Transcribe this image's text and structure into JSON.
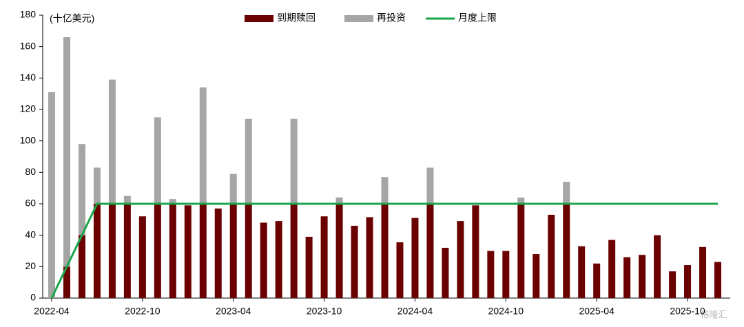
{
  "chart_data": {
    "type": "bar",
    "stacked": true,
    "y_label": "(十亿美元)",
    "watermark": "格隆汇",
    "categories": [
      "2022-04",
      null,
      null,
      null,
      null,
      null,
      "2022-10",
      null,
      null,
      null,
      null,
      null,
      "2023-04",
      null,
      null,
      null,
      null,
      null,
      "2023-10",
      null,
      null,
      null,
      null,
      null,
      "2024-04",
      null,
      null,
      null,
      null,
      null,
      "2024-10",
      null,
      null,
      null,
      null,
      null,
      "2025-04",
      null,
      null,
      null,
      null,
      null,
      "2025-10",
      null,
      null
    ],
    "series": [
      {
        "name": "到期赎回",
        "type": "bar",
        "color": "#6b0000",
        "values": [
          0,
          20,
          40,
          60,
          60,
          60,
          52,
          60,
          60,
          59,
          60,
          57,
          60,
          60,
          48,
          49,
          60,
          39,
          52,
          60,
          46,
          51.5,
          60,
          35.5,
          51,
          60,
          32,
          49,
          59,
          30,
          30,
          60,
          28,
          53,
          60,
          33,
          22,
          37,
          26,
          27.5,
          40,
          17,
          21,
          32.5,
          23
        ]
      },
      {
        "name": "再投资",
        "type": "bar",
        "color": "#a6a6a6",
        "values": [
          131,
          146,
          58,
          23,
          79,
          5,
          0,
          55,
          3,
          0,
          74,
          0,
          19,
          54,
          0,
          0,
          54,
          0,
          0,
          4,
          0,
          0,
          17,
          0,
          0,
          23,
          0,
          0,
          0,
          0,
          0,
          4,
          0,
          0,
          14,
          0,
          0,
          0,
          0,
          0,
          0,
          0,
          0,
          0,
          0
        ]
      },
      {
        "name": "月度上限",
        "type": "line",
        "color": "#1aa64a",
        "values": [
          0,
          20,
          40,
          60,
          60,
          60,
          60,
          60,
          60,
          60,
          60,
          60,
          60,
          60,
          60,
          60,
          60,
          60,
          60,
          60,
          60,
          60,
          60,
          60,
          60,
          60,
          60,
          60,
          60,
          60,
          60,
          60,
          60,
          60,
          60,
          60,
          60,
          60,
          60,
          60,
          60,
          60,
          60,
          60,
          60
        ]
      }
    ],
    "ylim": [
      0,
      180
    ],
    "yticks": [
      0,
      20,
      40,
      60,
      80,
      100,
      120,
      140,
      160,
      180
    ],
    "grid": false
  }
}
